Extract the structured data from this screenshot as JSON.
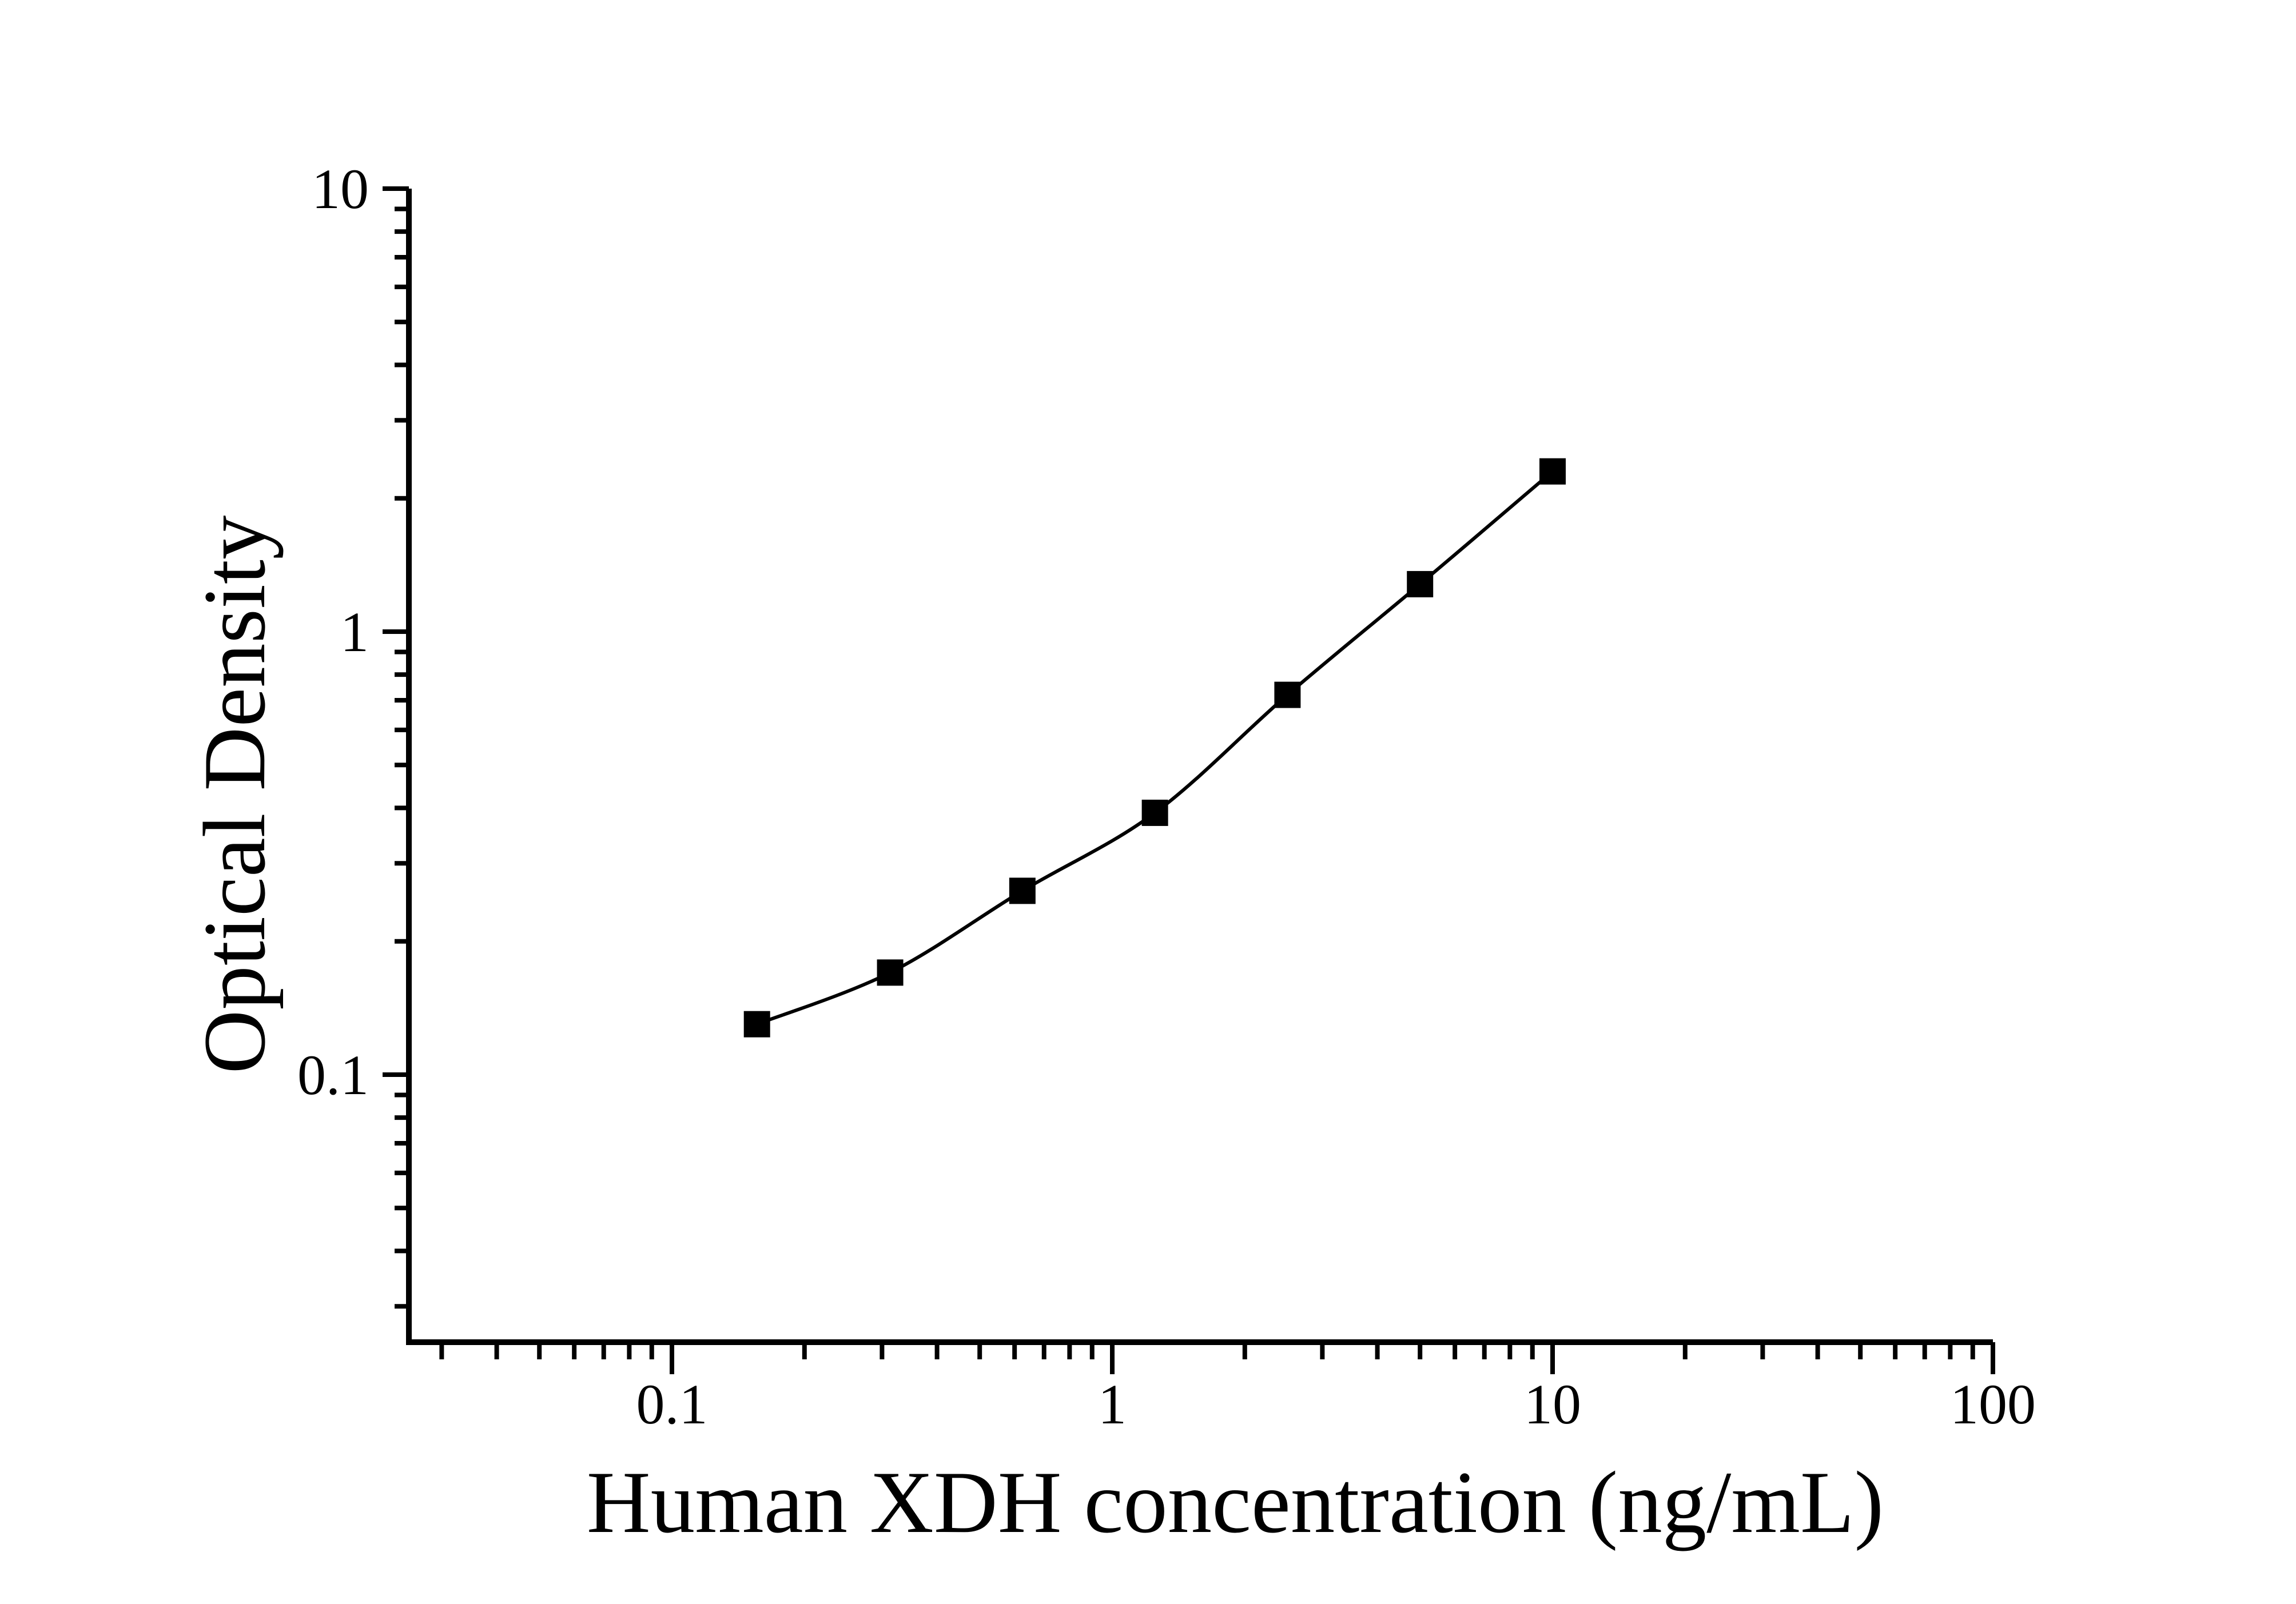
{
  "figure": {
    "background": "#ffffff",
    "ink_color": "#000000"
  },
  "chart_data": {
    "type": "scatter",
    "title": "",
    "xlabel": "Human XDH concentration (ng/mL)",
    "ylabel": "Optical Density",
    "x_scale": "log",
    "y_scale": "log",
    "x": [
      0.156,
      0.313,
      0.625,
      1.25,
      2.5,
      5,
      10
    ],
    "y": [
      0.13,
      0.17,
      0.26,
      0.39,
      0.72,
      1.28,
      2.3
    ],
    "series_name": "standard-curve",
    "marker": "filled-square",
    "marker_color": "#000000",
    "line_color": "#000000",
    "line_style": "solid",
    "x_major_ticks": [
      0.1,
      1,
      10,
      100
    ],
    "x_major_tick_labels": [
      "0.1",
      "1",
      "10",
      "100"
    ],
    "y_major_ticks": [
      10,
      1,
      0.1
    ],
    "y_major_tick_labels": [
      "10",
      "1",
      "0.1"
    ],
    "x_range": [
      0.025,
      100
    ],
    "y_range": [
      0.025,
      10
    ],
    "grid": "off",
    "legend": "none"
  }
}
